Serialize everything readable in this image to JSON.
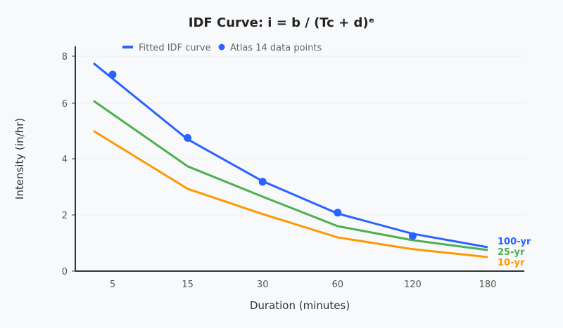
{
  "chart_data": {
    "type": "line",
    "title": "IDF Curve: i = b / (Tc + d)ᵉ",
    "xlabel": "Duration (minutes)",
    "ylabel": "Intensity (in/hr)",
    "categories": [
      "5",
      "15",
      "30",
      "60",
      "120",
      "180"
    ],
    "yticks": [
      0,
      2,
      4,
      6,
      8
    ],
    "grid": true,
    "legend": {
      "position": "top-center",
      "entries": [
        "Fitted IDF curve",
        "Atlas 14 data points"
      ]
    },
    "series": [
      {
        "name": "100-yr",
        "color": "#2962ff",
        "values": [
          7.7,
          4.7,
          3.2,
          2.05,
          1.33,
          0.85
        ]
      },
      {
        "name": "25-yr",
        "color": "#4caf50",
        "values": [
          6.1,
          3.73,
          2.65,
          1.6,
          1.1,
          0.75
        ]
      },
      {
        "name": "10-yr",
        "color": "#ff9800",
        "values": [
          5.0,
          2.93,
          2.03,
          1.2,
          0.78,
          0.5
        ]
      }
    ],
    "points": {
      "name": "Atlas 14 data points",
      "color": "#2962ff",
      "categories": [
        "5",
        "15",
        "30",
        "60",
        "120"
      ],
      "values": [
        7.22,
        4.75,
        3.18,
        2.08,
        1.25
      ]
    }
  }
}
